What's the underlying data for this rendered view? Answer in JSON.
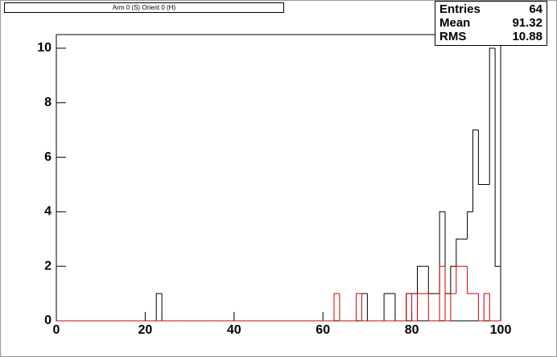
{
  "chart_data": {
    "type": "histogram",
    "title": "Arm 0 (S) Orient 0 (H)",
    "bins": [
      0,
      1.25,
      2.5,
      3.75,
      5,
      6.25,
      7.5,
      8.75,
      10,
      11.25,
      12.5,
      13.75,
      15,
      16.25,
      17.5,
      18.75,
      20,
      21.25,
      22.5,
      23.75,
      25,
      26.25,
      27.5,
      28.75,
      30,
      31.25,
      32.5,
      33.75,
      35,
      36.25,
      37.5,
      38.75,
      40,
      41.25,
      42.5,
      43.75,
      45,
      46.25,
      47.5,
      48.75,
      50,
      51.25,
      52.5,
      53.75,
      55,
      56.25,
      57.5,
      58.75,
      60,
      61.25,
      62.5,
      63.75,
      65,
      66.25,
      67.5,
      68.75,
      70,
      71.25,
      72.5,
      73.75,
      75,
      76.25,
      77.5,
      78.75,
      80,
      81.25,
      82.5,
      83.75,
      85,
      86.25,
      87.5,
      88.75,
      90,
      91.25,
      92.5,
      93.75,
      95,
      96.25,
      97.5,
      98.75,
      100
    ],
    "series": [
      {
        "color": "#000000",
        "values": [
          0,
          0,
          0,
          0,
          0,
          0,
          0,
          0,
          0,
          0,
          0,
          0,
          0,
          0,
          0,
          0,
          0,
          0,
          1,
          0,
          0,
          0,
          0,
          0,
          0,
          0,
          0,
          0,
          0,
          0,
          0,
          0,
          0,
          0,
          0,
          0,
          0,
          0,
          0,
          0,
          0,
          0,
          0,
          0,
          0,
          0,
          0,
          0,
          0,
          0,
          0,
          0,
          0,
          0,
          0,
          1,
          0,
          0,
          0,
          1,
          1,
          0,
          0,
          1,
          1,
          2,
          2,
          1,
          1,
          4,
          1,
          2,
          3,
          3,
          4,
          7,
          5,
          5,
          10,
          2
        ]
      },
      {
        "color": "#d40000",
        "values": [
          0,
          0,
          0,
          0,
          0,
          0,
          0,
          0,
          0,
          0,
          0,
          0,
          0,
          0,
          0,
          0,
          0,
          0,
          0,
          0,
          0,
          0,
          0,
          0,
          0,
          0,
          0,
          0,
          0,
          0,
          0,
          0,
          0,
          0,
          0,
          0,
          0,
          0,
          0,
          0,
          0,
          0,
          0,
          0,
          0,
          0,
          0,
          0,
          0,
          0,
          1,
          0,
          0,
          0,
          1,
          0,
          0,
          0,
          0,
          0,
          0,
          0,
          0,
          1,
          0,
          1,
          1,
          0,
          0,
          2,
          0,
          1,
          2,
          2,
          1,
          1,
          0,
          1,
          0,
          0
        ]
      }
    ],
    "xlim": [
      0,
      100
    ],
    "xticks": [
      0,
      20,
      40,
      60,
      80,
      100
    ],
    "ylim": [
      0,
      10.5
    ],
    "yticks": [
      0,
      2,
      4,
      6,
      8,
      10
    ],
    "stats": {
      "labels": [
        "Entries",
        "Mean",
        "RMS"
      ],
      "values": [
        64,
        91.32,
        10.88
      ]
    }
  }
}
